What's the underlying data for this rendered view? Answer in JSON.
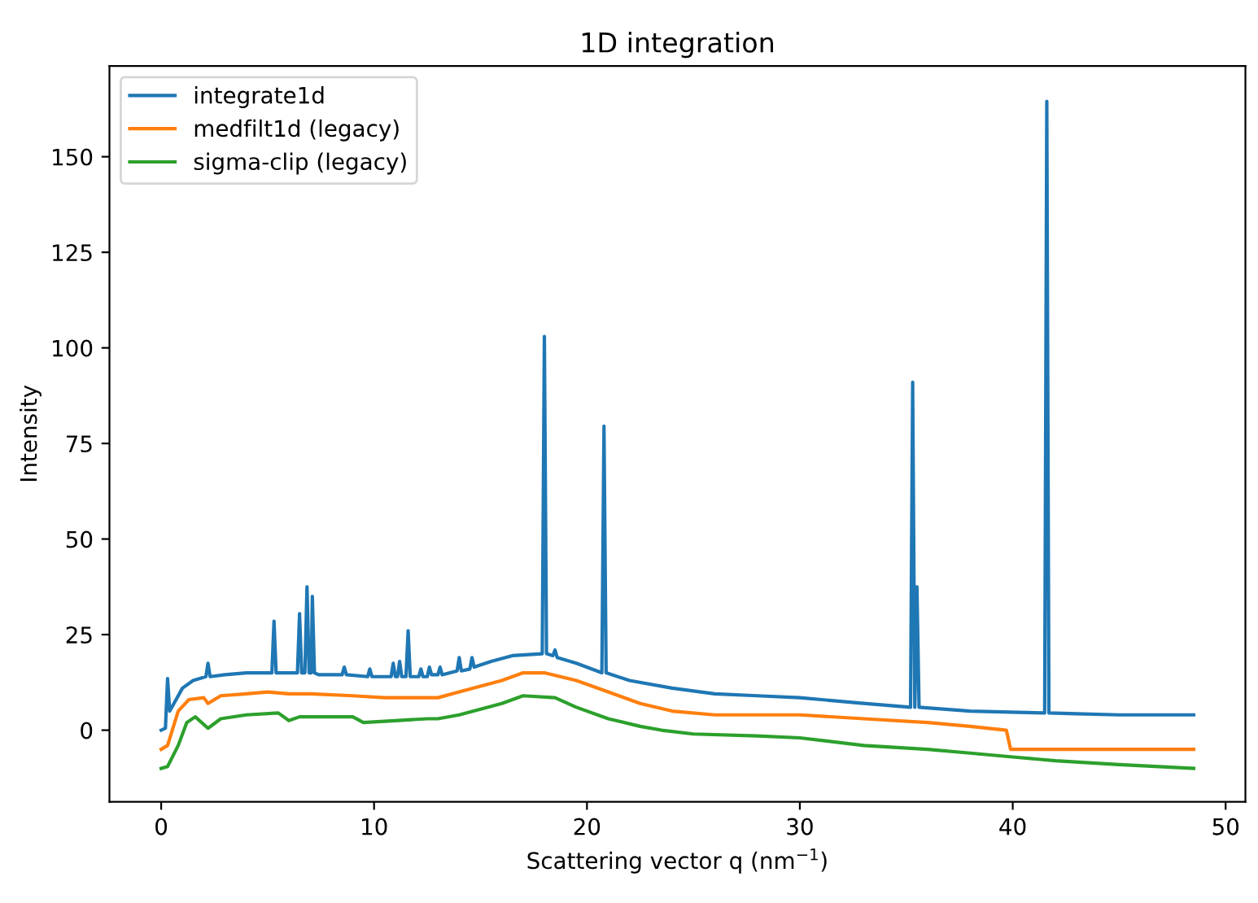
{
  "chart_data": {
    "type": "line",
    "title": "1D integration",
    "xlabel": "Scattering vector q (nm$^{−1}$)",
    "ylabel": "Intensity",
    "xlim": [
      -2.43,
      50.93
    ],
    "ylim": [
      -18.75,
      173.75
    ],
    "xticks": [
      0,
      10,
      20,
      30,
      40,
      50
    ],
    "yticks": [
      0,
      25,
      50,
      75,
      100,
      125,
      150
    ],
    "grid": false,
    "legend": "top left",
    "marker": "none",
    "line_style": "solid",
    "series": [
      {
        "name": "integrate1d",
        "color": "#1f77b4",
        "x": [
          0,
          0.2,
          0.3,
          0.4,
          0.6,
          1.0,
          1.5,
          2.1,
          2.2,
          2.3,
          3,
          4,
          5.2,
          5.3,
          5.4,
          6.4,
          6.5,
          6.6,
          6.75,
          6.85,
          6.95,
          7.05,
          7.1,
          7.2,
          7.4,
          8.5,
          8.6,
          8.7,
          9.7,
          9.8,
          9.9,
          10.8,
          10.9,
          11.0,
          11.1,
          11.2,
          11.3,
          11.5,
          11.6,
          11.7,
          12.1,
          12.2,
          12.3,
          12.5,
          12.6,
          12.7,
          13.0,
          13.1,
          13.2,
          13.9,
          14.0,
          14.1,
          14.5,
          14.6,
          14.7,
          15.5,
          16.5,
          17.9,
          18.0,
          18.1,
          18.4,
          18.5,
          18.6,
          19.5,
          20.7,
          20.8,
          20.9,
          22,
          24,
          26,
          28,
          30,
          33,
          35.2,
          35.3,
          35.4,
          35.5,
          35.6,
          38,
          41.5,
          41.6,
          41.7,
          43,
          45,
          48.5
        ],
        "values": [
          0,
          0.5,
          13.5,
          5,
          7,
          11,
          13,
          14,
          17.5,
          14,
          14.5,
          15,
          15,
          28.5,
          15,
          15,
          30.5,
          15,
          15,
          37.5,
          15,
          15,
          35,
          15,
          14.5,
          14.5,
          16.5,
          14.5,
          14,
          16,
          14,
          14,
          17.5,
          14,
          14,
          18,
          14,
          14,
          26,
          14,
          14,
          16,
          14,
          14,
          16.5,
          14.5,
          14.5,
          16.5,
          14.5,
          15.5,
          19,
          15.5,
          16,
          19,
          16.5,
          18,
          19.5,
          20,
          103,
          20,
          19.5,
          21,
          19,
          17.5,
          15,
          79.5,
          15,
          13,
          11,
          9.5,
          9,
          8.5,
          7,
          6,
          91,
          6,
          37.5,
          6,
          5,
          4.5,
          164.5,
          4.5,
          4.3,
          4,
          4
        ]
      },
      {
        "name": "medfilt1d (legacy)",
        "color": "#ff7f0e",
        "x": [
          0,
          0.3,
          0.8,
          1.3,
          2.0,
          2.2,
          2.8,
          4,
          5,
          6,
          7,
          9,
          10.5,
          13,
          14,
          16,
          17,
          18,
          19.5,
          21,
          22.5,
          24,
          26,
          30,
          33,
          36,
          38,
          39.7,
          39.9,
          48.5
        ],
        "values": [
          -5,
          -4,
          5,
          8,
          8.5,
          7,
          9,
          9.5,
          10,
          9.5,
          9.5,
          9,
          8.5,
          8.5,
          10,
          13,
          15,
          15,
          13,
          10,
          7,
          5,
          4,
          4,
          3,
          2,
          1,
          0,
          -5,
          -5
        ]
      },
      {
        "name": "sigma-clip (legacy)",
        "color": "#2ca02c",
        "x": [
          0,
          0.3,
          0.8,
          1.2,
          1.6,
          2.2,
          2.8,
          4,
          5.5,
          6,
          6.5,
          9,
          9.5,
          11,
          12.5,
          13,
          14,
          16,
          17,
          18.5,
          19.5,
          21,
          22.5,
          23.5,
          25,
          28,
          30,
          33,
          36,
          38,
          40,
          42,
          45,
          48.5
        ],
        "values": [
          -10,
          -9.5,
          -4,
          2,
          3.5,
          0.5,
          3,
          4,
          4.5,
          2.5,
          3.5,
          3.5,
          2,
          2.5,
          3,
          3,
          4,
          7,
          9,
          8.5,
          6,
          3,
          1,
          0,
          -1,
          -1.5,
          -2,
          -4,
          -5,
          -6,
          -7,
          -8,
          -9,
          -10
        ]
      }
    ]
  }
}
